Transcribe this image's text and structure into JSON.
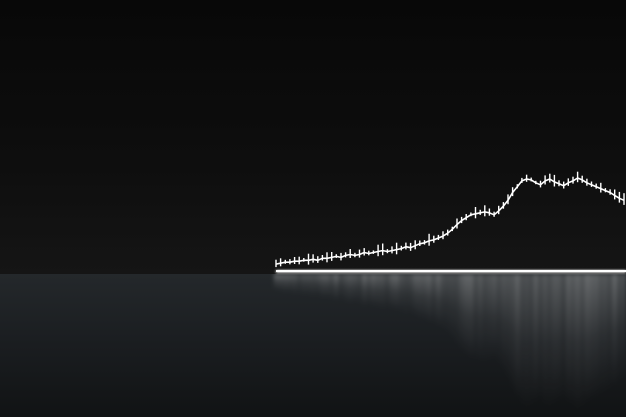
{
  "scene": {
    "description_colors": {
      "background_top": "#0a0a0a",
      "background_mid": "#161616",
      "floor": "#1a1d1f",
      "line": "#ffffff",
      "horizon": "#e8e8e8"
    },
    "chart_style": "candlestick-like price line, rising trend, reflected on glossy floor",
    "trend_series": [
      4,
      5,
      6,
      6,
      7,
      7,
      8,
      8,
      9,
      8,
      10,
      10,
      11,
      12,
      11,
      13,
      14,
      13,
      14,
      16,
      15,
      16,
      17,
      18,
      17,
      18,
      19,
      20,
      22,
      21,
      23,
      25,
      26,
      28,
      29,
      31,
      33,
      36,
      40,
      45,
      49,
      52,
      55,
      56,
      57,
      58,
      57,
      55,
      59,
      64,
      70,
      78,
      84,
      90,
      92,
      91,
      88,
      86,
      90,
      92,
      89,
      87,
      85,
      88,
      90,
      93,
      91,
      88,
      86,
      84,
      82,
      80,
      78,
      75,
      72,
      70
    ]
  }
}
